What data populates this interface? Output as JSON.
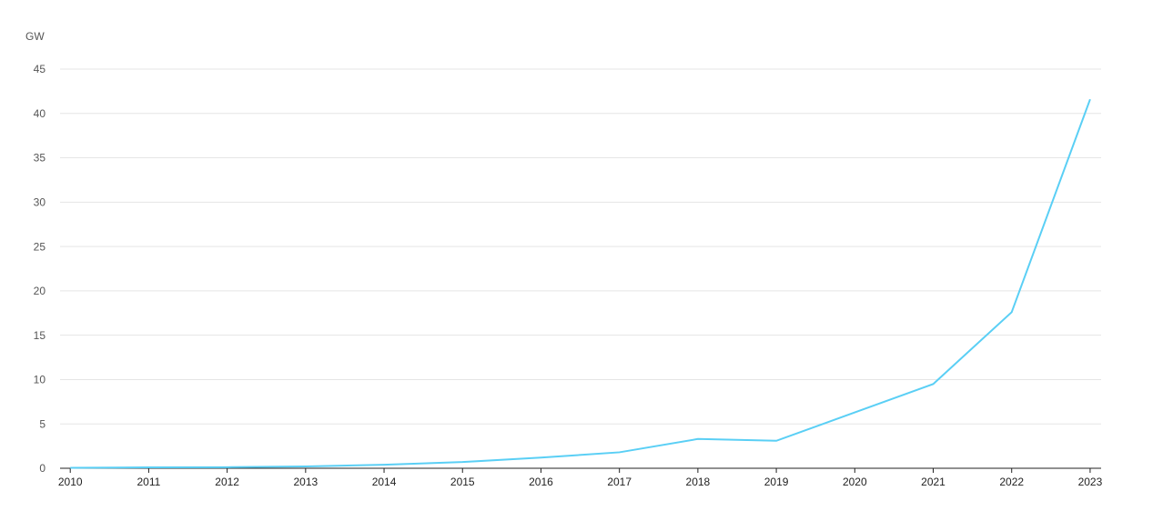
{
  "chart_data": {
    "type": "line",
    "y_axis_label": "GW",
    "x": [
      2010,
      2011,
      2012,
      2013,
      2014,
      2015,
      2016,
      2017,
      2018,
      2019,
      2020,
      2021,
      2022,
      2023
    ],
    "series": [
      {
        "name": "GW",
        "color": "#5acff5",
        "values": [
          0.05,
          0.1,
          0.12,
          0.2,
          0.4,
          0.7,
          1.2,
          1.8,
          3.3,
          3.1,
          6.3,
          9.5,
          17.6,
          41.6
        ]
      }
    ],
    "xlim": [
      2009.87,
      2023.14
    ],
    "xticks": [
      2010,
      2011,
      2012,
      2013,
      2014,
      2015,
      2016,
      2017,
      2018,
      2019,
      2020,
      2021,
      2022,
      2023
    ],
    "ylim": [
      0,
      45
    ],
    "yticks": [
      0,
      5,
      10,
      15,
      20,
      25,
      30,
      35,
      40,
      45
    ],
    "grid": true
  }
}
